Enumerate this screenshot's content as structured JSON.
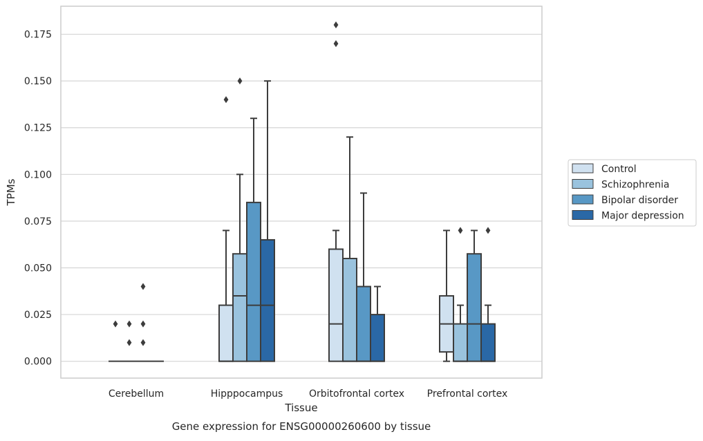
{
  "chart_data": {
    "type": "box",
    "title": "Gene expression for ENSG00000260600 by tissue",
    "xlabel": "Tissue",
    "ylabel": "TPMs",
    "ylim": [
      -0.009,
      0.19
    ],
    "yticks": [
      0.0,
      0.025,
      0.05,
      0.075,
      0.1,
      0.125,
      0.15,
      0.175
    ],
    "ytick_labels": [
      "0.000",
      "0.025",
      "0.050",
      "0.075",
      "0.100",
      "0.125",
      "0.150",
      "0.175"
    ],
    "grid": "horizontal",
    "legend_position": "right",
    "categories": [
      "Cerebellum",
      "Hipppocampus",
      "Orbitofrontal cortex",
      "Prefrontal cortex"
    ],
    "series": [
      {
        "name": "Control",
        "color": "#d0e1f0",
        "boxes": [
          {
            "whislo": 0.0,
            "q1": 0.0,
            "med": 0.0,
            "q3": 0.0,
            "whishi": 0.0,
            "fliers": [
              0.02
            ]
          },
          {
            "whislo": 0.0,
            "q1": 0.0,
            "med": 0.0,
            "q3": 0.03,
            "whishi": 0.07,
            "fliers": [
              0.14
            ]
          },
          {
            "whislo": 0.0,
            "q1": 0.0,
            "med": 0.02,
            "q3": 0.06,
            "whishi": 0.07,
            "fliers": [
              0.17,
              0.18
            ]
          },
          {
            "whislo": 0.0,
            "q1": 0.005,
            "med": 0.02,
            "q3": 0.035,
            "whishi": 0.07,
            "fliers": []
          }
        ]
      },
      {
        "name": "Schizophrenia",
        "color": "#9ac3de",
        "boxes": [
          {
            "whislo": 0.0,
            "q1": 0.0,
            "med": 0.0,
            "q3": 0.0,
            "whishi": 0.0,
            "fliers": [
              0.01,
              0.02
            ]
          },
          {
            "whislo": 0.0,
            "q1": 0.0,
            "med": 0.035,
            "q3": 0.0575,
            "whishi": 0.1,
            "fliers": [
              0.15
            ]
          },
          {
            "whislo": 0.0,
            "q1": 0.0,
            "med": 0.0,
            "q3": 0.055,
            "whishi": 0.12,
            "fliers": []
          },
          {
            "whislo": 0.0,
            "q1": 0.0,
            "med": 0.0,
            "q3": 0.02,
            "whishi": 0.03,
            "fliers": [
              0.07
            ]
          }
        ]
      },
      {
        "name": "Bipolar disorder",
        "color": "#5898c5",
        "boxes": [
          {
            "whislo": 0.0,
            "q1": 0.0,
            "med": 0.0,
            "q3": 0.0,
            "whishi": 0.0,
            "fliers": [
              0.01,
              0.02,
              0.04
            ]
          },
          {
            "whislo": 0.0,
            "q1": 0.0,
            "med": 0.03,
            "q3": 0.085,
            "whishi": 0.13,
            "fliers": []
          },
          {
            "whislo": 0.0,
            "q1": 0.0,
            "med": 0.0,
            "q3": 0.04,
            "whishi": 0.09,
            "fliers": []
          },
          {
            "whislo": 0.0,
            "q1": 0.0,
            "med": 0.02,
            "q3": 0.0575,
            "whishi": 0.07,
            "fliers": []
          }
        ]
      },
      {
        "name": "Major depression",
        "color": "#2a68a6",
        "boxes": [
          {
            "whislo": 0.0,
            "q1": 0.0,
            "med": 0.0,
            "q3": 0.0,
            "whishi": 0.0,
            "fliers": []
          },
          {
            "whislo": 0.0,
            "q1": 0.0,
            "med": 0.03,
            "q3": 0.065,
            "whishi": 0.15,
            "fliers": []
          },
          {
            "whislo": 0.0,
            "q1": 0.0,
            "med": 0.0,
            "q3": 0.025,
            "whishi": 0.04,
            "fliers": []
          },
          {
            "whislo": 0.0,
            "q1": 0.0,
            "med": 0.0,
            "q3": 0.02,
            "whishi": 0.03,
            "fliers": [
              0.07
            ]
          }
        ]
      }
    ]
  }
}
